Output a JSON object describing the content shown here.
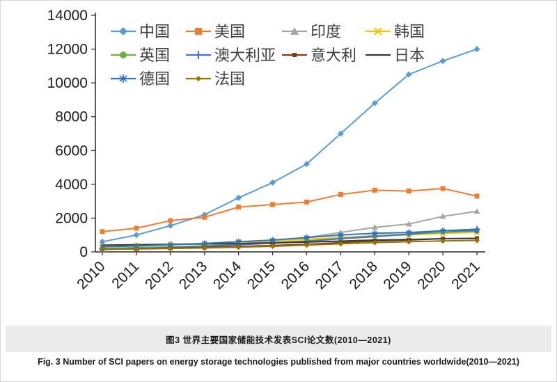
{
  "captions": {
    "zh": "图3  世界主要国家储能技术发表SCI论文数(2010—2021)",
    "en": "Fig. 3  Number of SCI papers on energy storage technologies published from major countries worldwide(2010—2021)"
  },
  "chart_data": {
    "type": "line",
    "title": "",
    "xlabel": "",
    "ylabel": "",
    "grid": false,
    "legend_position": "top-left-inside",
    "ylim": [
      0,
      14000
    ],
    "ytick_step": 2000,
    "x": [
      "2010",
      "2011",
      "2012",
      "2013",
      "2014",
      "2015",
      "2016",
      "2017",
      "2018",
      "2019",
      "2020",
      "2021"
    ],
    "series": [
      {
        "key": "china",
        "name": "中国",
        "color": "#5B9BD5",
        "marker": "diamond",
        "values": [
          600,
          1000,
          1550,
          2200,
          3200,
          4100,
          5200,
          7000,
          8800,
          10500,
          11300,
          12000
        ]
      },
      {
        "key": "usa",
        "name": "美国",
        "color": "#ED7D31",
        "marker": "square",
        "values": [
          1200,
          1400,
          1850,
          2050,
          2650,
          2800,
          2950,
          3400,
          3650,
          3600,
          3750,
          3300
        ]
      },
      {
        "key": "india",
        "name": "印度",
        "color": "#A5A5A5",
        "marker": "triangle",
        "values": [
          150,
          200,
          280,
          350,
          480,
          650,
          850,
          1150,
          1450,
          1650,
          2100,
          2400
        ]
      },
      {
        "key": "korea",
        "name": "韩国",
        "color": "#FFC000",
        "marker": "x",
        "values": [
          350,
          400,
          450,
          500,
          600,
          650,
          750,
          850,
          950,
          1000,
          1100,
          1150
        ]
      },
      {
        "key": "uk",
        "name": "英国",
        "color": "#70AD47",
        "marker": "circle",
        "values": [
          200,
          250,
          300,
          350,
          450,
          550,
          650,
          800,
          950,
          1050,
          1150,
          1250
        ]
      },
      {
        "key": "australia",
        "name": "澳大利亚",
        "color": "#4472C4",
        "marker": "plus",
        "values": [
          150,
          200,
          250,
          320,
          420,
          520,
          620,
          780,
          900,
          1050,
          1250,
          1350
        ]
      },
      {
        "key": "italy",
        "name": "意大利",
        "color": "#843C0C",
        "marker": "square-small",
        "values": [
          150,
          180,
          220,
          260,
          320,
          380,
          450,
          550,
          650,
          700,
          780,
          800
        ]
      },
      {
        "key": "japan",
        "name": "日本",
        "color": "#3B3838",
        "marker": "dash",
        "values": [
          400,
          420,
          450,
          470,
          500,
          530,
          580,
          640,
          700,
          730,
          780,
          800
        ]
      },
      {
        "key": "germany",
        "name": "德国",
        "color": "#2E75B6",
        "marker": "asterisk",
        "values": [
          300,
          350,
          420,
          500,
          600,
          700,
          850,
          1000,
          1100,
          1150,
          1250,
          1250
        ]
      },
      {
        "key": "france",
        "name": "法国",
        "color": "#997300",
        "marker": "diamond-small",
        "values": [
          150,
          170,
          200,
          230,
          280,
          330,
          400,
          480,
          550,
          600,
          650,
          680
        ]
      }
    ]
  }
}
